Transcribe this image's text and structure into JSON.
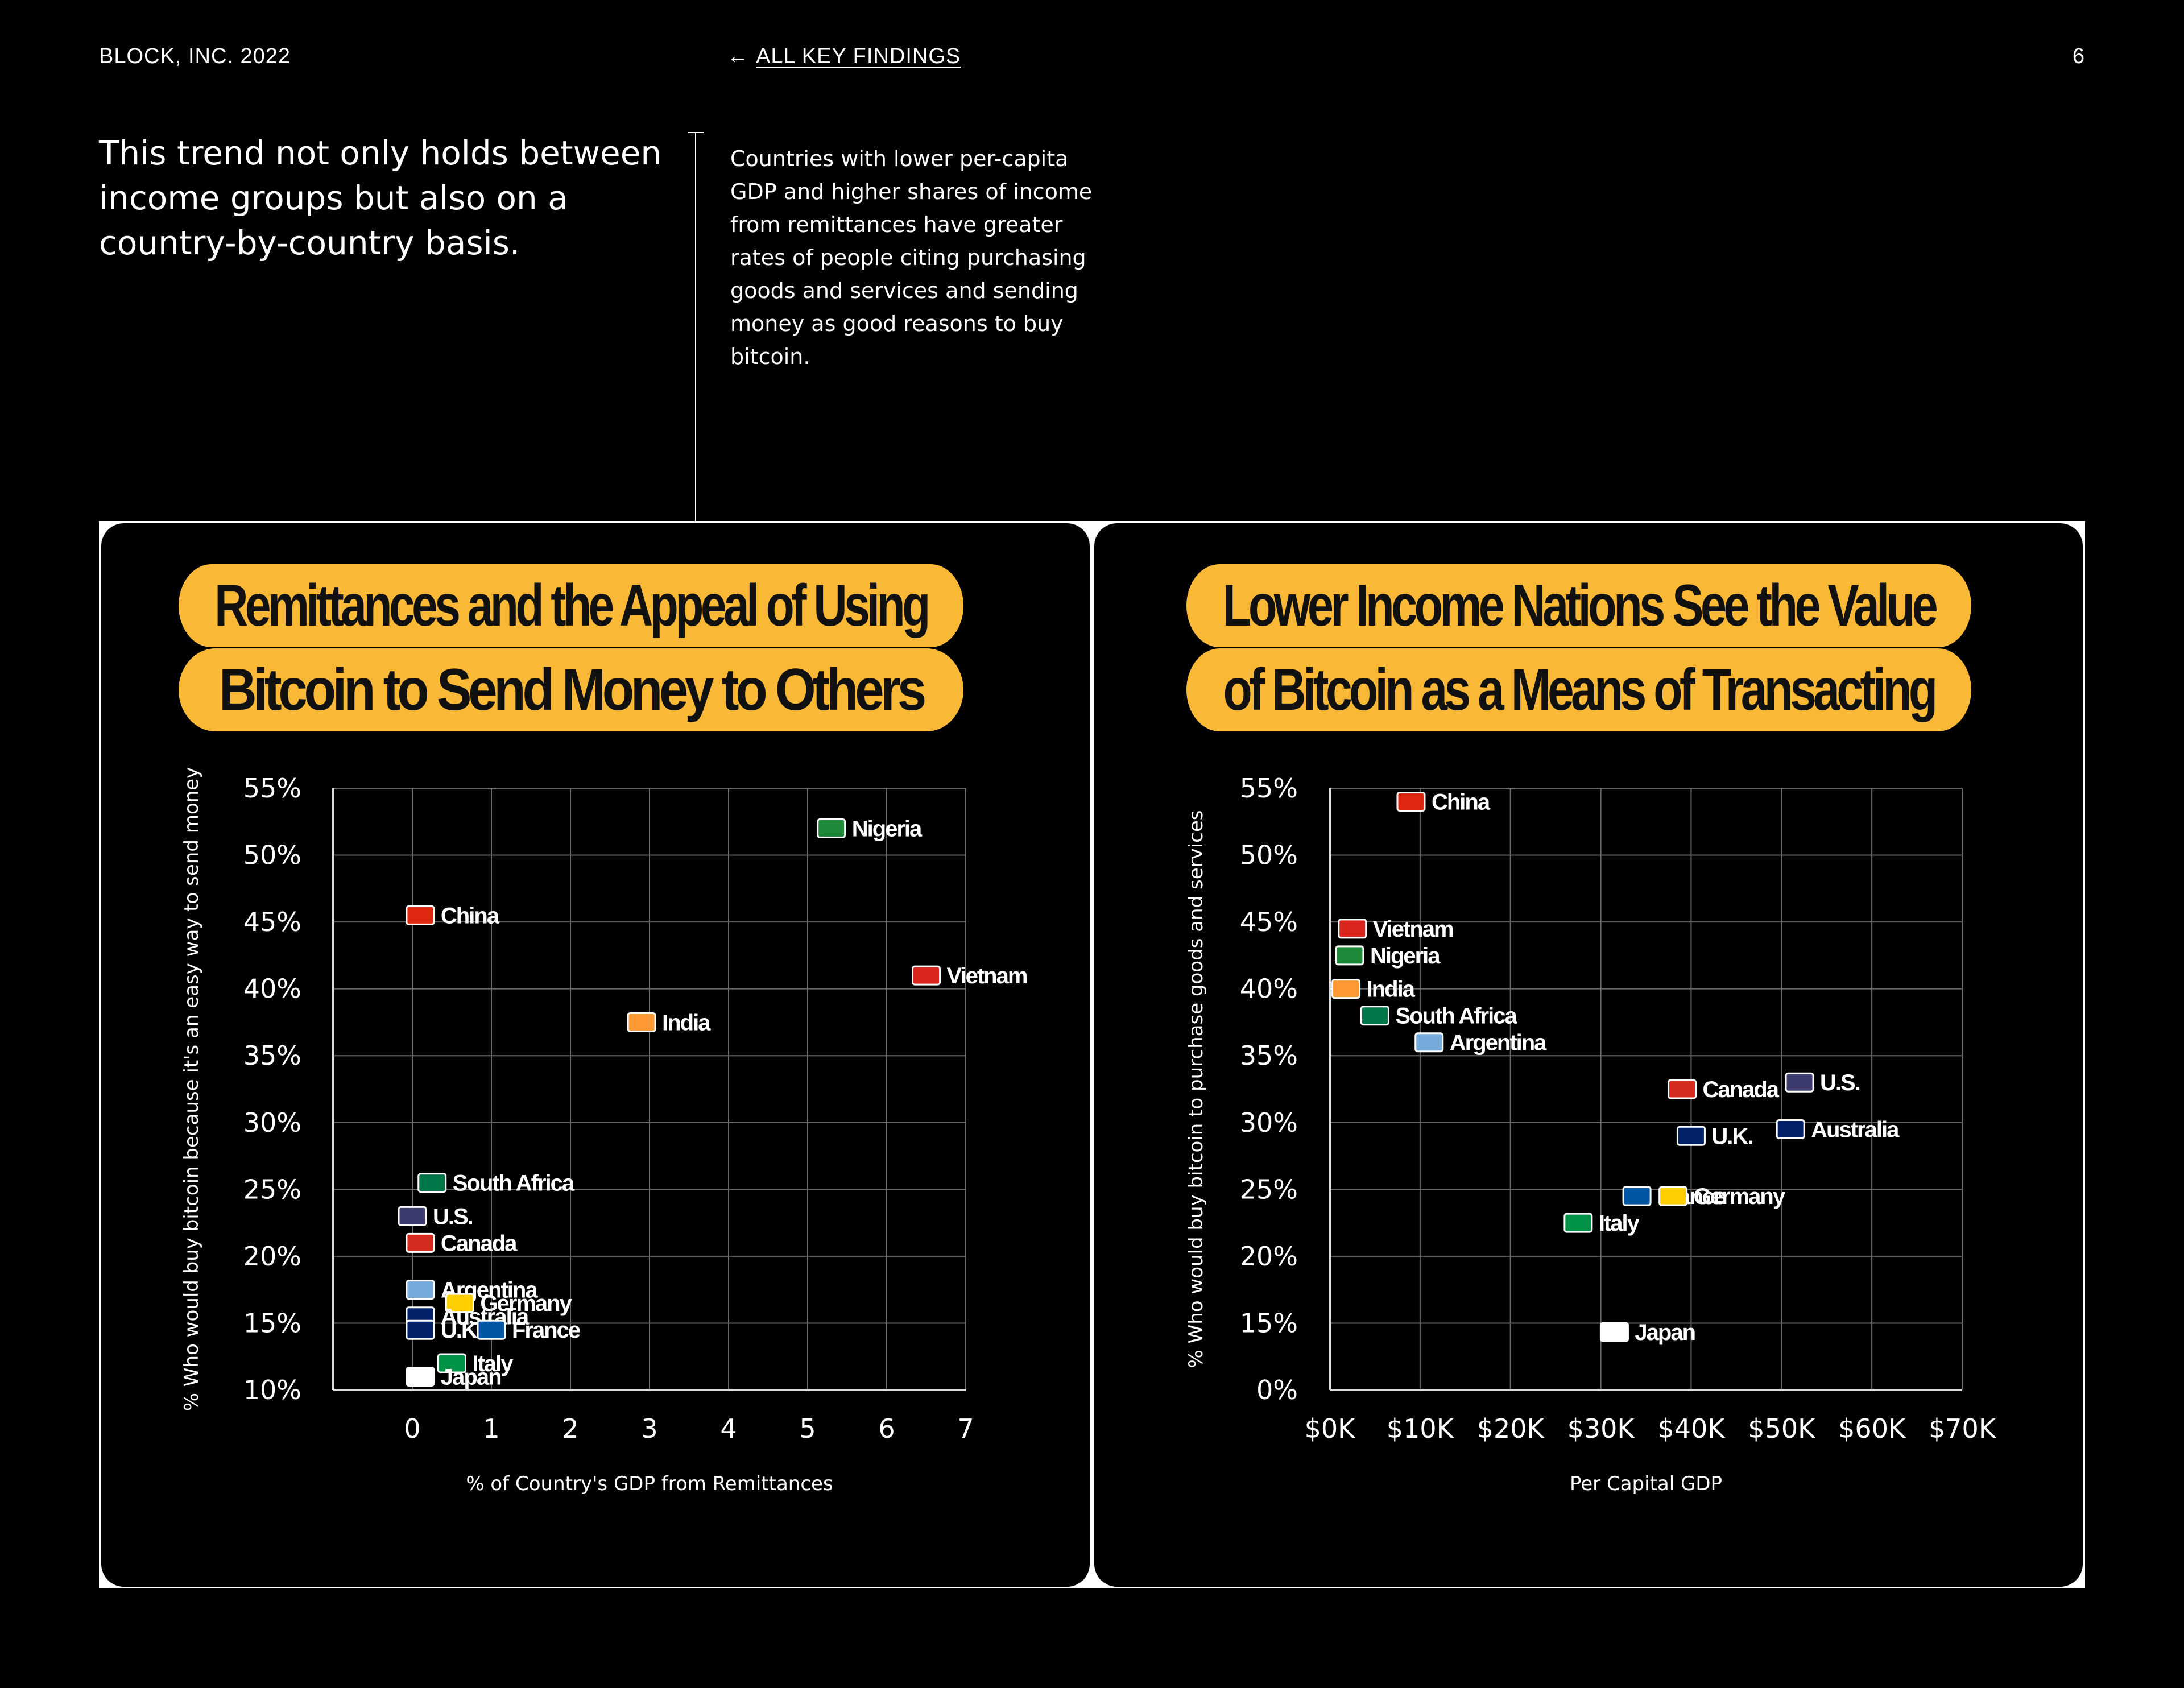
{
  "header": {
    "left": "BLOCK, INC. 2022",
    "nav_arrow": "←",
    "nav_link": "ALL KEY FINDINGS",
    "page_number": "6"
  },
  "intro": {
    "lead": "This trend not only holds between income groups but also on a country-by-country basis.",
    "sidenote": "Countries with lower per-capita GDP and higher shares of income from remittances have greater rates of people citing purchasing goods and services and sending money as good reasons to buy bitcoin."
  },
  "chart_data": [
    {
      "type": "scatter",
      "title_line1": "Remittances and the Appeal of Using",
      "title_line2": "Bitcoin to Send Money to Others",
      "xlabel": "% of Country's GDP from Remittances",
      "ylabel": "% Who would buy bitcoin because it's an easy way to send money",
      "xlim": [
        -1,
        7
      ],
      "ylim": [
        10,
        55
      ],
      "x_ticks": [
        "0",
        "1",
        "2",
        "3",
        "4",
        "5",
        "6",
        "7"
      ],
      "y_ticks": [
        "10%",
        "15%",
        "20%",
        "25%",
        "30%",
        "35%",
        "40%",
        "45%",
        "50%",
        "55%"
      ],
      "grid": true,
      "points": [
        {
          "label": "Nigeria",
          "x": 5.3,
          "y": 52,
          "color": "#1f8a3a"
        },
        {
          "label": "China",
          "x": 0.1,
          "y": 45.5,
          "color": "#de2910"
        },
        {
          "label": "Vietnam",
          "x": 6.5,
          "y": 41,
          "color": "#da251d"
        },
        {
          "label": "India",
          "x": 2.9,
          "y": 37.5,
          "color": "#ff9933"
        },
        {
          "label": "South Africa",
          "x": 0.25,
          "y": 25.5,
          "color": "#007749"
        },
        {
          "label": "U.S.",
          "x": 0.0,
          "y": 23,
          "color": "#3c3b6e"
        },
        {
          "label": "Canada",
          "x": 0.1,
          "y": 21,
          "color": "#d52b1e"
        },
        {
          "label": "Argentina",
          "x": 0.1,
          "y": 17.5,
          "color": "#75aadb"
        },
        {
          "label": "Germany",
          "x": 0.6,
          "y": 16.5,
          "color": "#ffce00"
        },
        {
          "label": "Australia",
          "x": 0.1,
          "y": 15.5,
          "color": "#012169"
        },
        {
          "label": "U.K.",
          "x": 0.1,
          "y": 14.5,
          "color": "#012169"
        },
        {
          "label": "France",
          "x": 1.0,
          "y": 14.5,
          "color": "#0055a4"
        },
        {
          "label": "Italy",
          "x": 0.5,
          "y": 12,
          "color": "#009246"
        },
        {
          "label": "Japan",
          "x": 0.1,
          "y": 11,
          "color": "#ffffff"
        }
      ]
    },
    {
      "type": "scatter",
      "title_line1": "Lower Income Nations See the Value",
      "title_line2": "of Bitcoin as a Means of Transacting",
      "xlabel": "Per Capital GDP",
      "ylabel": "% Who would buy bitcoin to purchase goods and services",
      "xlim": [
        0,
        70000
      ],
      "ylim": [
        0,
        55
      ],
      "x_ticks": [
        "$0K",
        "$10K",
        "$20K",
        "$30K",
        "$40K",
        "$50K",
        "$60K",
        "$70K"
      ],
      "y_ticks": [
        "0%",
        "15%",
        "20%",
        "25%",
        "30%",
        "35%",
        "40%",
        "45%",
        "50%",
        "55%"
      ],
      "grid": true,
      "points": [
        {
          "label": "China",
          "x": 9000,
          "y": 54,
          "color": "#de2910"
        },
        {
          "label": "Vietnam",
          "x": 2500,
          "y": 44.5,
          "color": "#da251d"
        },
        {
          "label": "Nigeria",
          "x": 2200,
          "y": 42.5,
          "color": "#1f8a3a"
        },
        {
          "label": "India",
          "x": 1800,
          "y": 40,
          "color": "#ff9933"
        },
        {
          "label": "South Africa",
          "x": 5000,
          "y": 38,
          "color": "#007749"
        },
        {
          "label": "Argentina",
          "x": 11000,
          "y": 36,
          "color": "#75aadb"
        },
        {
          "label": "Canada",
          "x": 39000,
          "y": 32.5,
          "color": "#d52b1e"
        },
        {
          "label": "U.S.",
          "x": 52000,
          "y": 33,
          "color": "#3c3b6e"
        },
        {
          "label": "U.K.",
          "x": 40000,
          "y": 29,
          "color": "#012169"
        },
        {
          "label": "Australia",
          "x": 51000,
          "y": 29.5,
          "color": "#012169"
        },
        {
          "label": "France",
          "x": 34000,
          "y": 24.5,
          "color": "#0055a4"
        },
        {
          "label": "Germany",
          "x": 38000,
          "y": 24.5,
          "color": "#ffce00"
        },
        {
          "label": "Italy",
          "x": 27500,
          "y": 22.5,
          "color": "#009246"
        },
        {
          "label": "Japan",
          "x": 31500,
          "y": 13,
          "color": "#ffffff"
        }
      ]
    }
  ]
}
